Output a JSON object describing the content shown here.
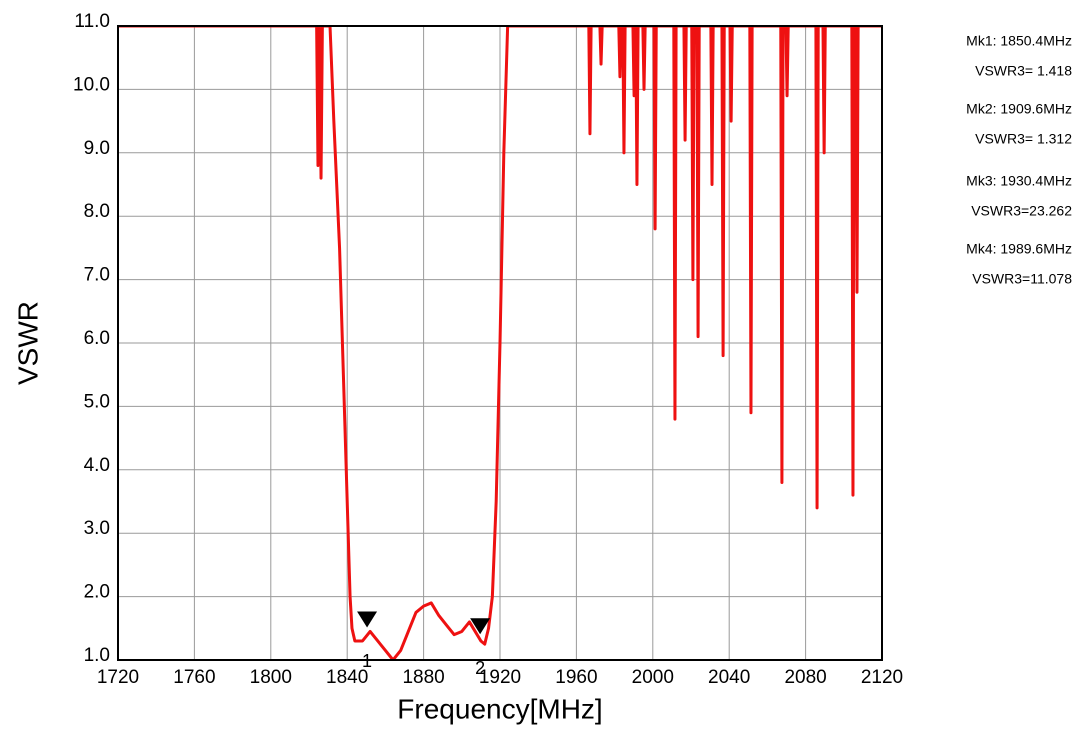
{
  "chart_data": {
    "type": "line",
    "ylabel": "VSWR",
    "xlabel": "Frequency[MHz]",
    "xlim": [
      1720,
      2120
    ],
    "xticks": [
      1720,
      1760,
      1800,
      1840,
      1880,
      1920,
      1960,
      2000,
      2040,
      2080,
      2120
    ],
    "ylim": [
      1,
      11
    ],
    "yticks": [
      {
        "value": 1,
        "label": "1.0"
      },
      {
        "value": 2,
        "label": "2.0"
      },
      {
        "value": 3,
        "label": "3.0"
      },
      {
        "value": 4,
        "label": "4.0"
      },
      {
        "value": 5,
        "label": "5.0"
      },
      {
        "value": 6,
        "label": "6.0"
      },
      {
        "value": 7,
        "label": "7.0"
      },
      {
        "value": 8,
        "label": "8.0"
      },
      {
        "value": 9,
        "label": "9.0"
      },
      {
        "value": 10,
        "label": "10.0"
      },
      {
        "value": 11,
        "label": "11.0"
      }
    ],
    "grid": true,
    "series": [
      {
        "color": "#ee1111",
        "x": [
          1720,
          1824,
          1824.7,
          1825.4,
          1826.3,
          1827,
          1831,
          1833,
          1836,
          1838,
          1839.5,
          1840.5,
          1841.5,
          1842.5,
          1844,
          1848,
          1852,
          1856,
          1860,
          1864,
          1868,
          1872,
          1876,
          1880,
          1884,
          1888,
          1892,
          1896,
          1900,
          1904,
          1906,
          1910,
          1912,
          1914,
          1916,
          1918,
          1920,
          1922,
          1924,
          1966.5,
          1967.1,
          1967.7,
          1972.3,
          1972.9,
          1973.5,
          1982.2,
          1982.8,
          1983.4,
          1984.3,
          1984.9,
          1985.5,
          1989.6,
          1990.2,
          1990.8,
          1991.1,
          1991.7,
          1992.3,
          1994.8,
          1995.4,
          1996.0,
          2000.6,
          2001.2,
          2001.8,
          2011.0,
          2011.6,
          2012.2,
          2016.3,
          2016.9,
          2017.5,
          2020.4,
          2021.0,
          2021.6,
          2023.1,
          2023.7,
          2024.3,
          2030.4,
          2031.0,
          2031.6,
          2036.2,
          2036.8,
          2037.4,
          2040.4,
          2041.0,
          2041.6,
          2050.8,
          2051.4,
          2052.0,
          2067.0,
          2067.6,
          2068.2,
          2069.7,
          2070.3,
          2070.9,
          2085.4,
          2086.0,
          2086.6,
          2089.1,
          2089.7,
          2090.3,
          2104.2,
          2104.8,
          2105.4,
          2106.3,
          2106.9,
          2107.5,
          2120
        ],
        "values": [
          11,
          11,
          8.8,
          11,
          8.6,
          11,
          11,
          9.5,
          7.5,
          5.5,
          4,
          3,
          2,
          1.5,
          1.3,
          1.3,
          1.45,
          1.3,
          1.15,
          1.0,
          1.15,
          1.45,
          1.75,
          1.85,
          1.9,
          1.7,
          1.55,
          1.4,
          1.45,
          1.6,
          1.5,
          1.3,
          1.25,
          1.5,
          2.0,
          3.5,
          6,
          9,
          11,
          11,
          9.3,
          11,
          11,
          10.4,
          11,
          11,
          10.2,
          11,
          11,
          9.0,
          11,
          11,
          9.9,
          11,
          11,
          8.5,
          11,
          11,
          10.0,
          11,
          11,
          7.8,
          11,
          11,
          4.8,
          11,
          11,
          9.2,
          11,
          11,
          7.0,
          11,
          11,
          6.1,
          11,
          11,
          8.5,
          11,
          11,
          5.8,
          11,
          11,
          9.5,
          11,
          11,
          4.9,
          11,
          11,
          3.8,
          11,
          11,
          9.9,
          11,
          11,
          3.4,
          11,
          11,
          9.0,
          11,
          11,
          3.6,
          11,
          11,
          6.8,
          11,
          11
        ]
      }
    ],
    "markers": [
      {
        "id": "1",
        "freq": 1850.4,
        "vswr": 1.418,
        "freq_label": "Mk1: 1850.4MHz",
        "vswr_label": "VSWR3= 1.418"
      },
      {
        "id": "2",
        "freq": 1909.6,
        "vswr": 1.312,
        "freq_label": "Mk2: 1909.6MHz",
        "vswr_label": "VSWR3= 1.312"
      },
      {
        "id": "3",
        "freq": 1930.4,
        "vswr": 23.262,
        "freq_label": "Mk3: 1930.4MHz",
        "vswr_label": "VSWR3=23.262"
      },
      {
        "id": "4",
        "freq": 1989.6,
        "vswr": 11.078,
        "freq_label": "Mk4: 1989.6MHz",
        "vswr_label": "VSWR3=11.078"
      }
    ]
  }
}
